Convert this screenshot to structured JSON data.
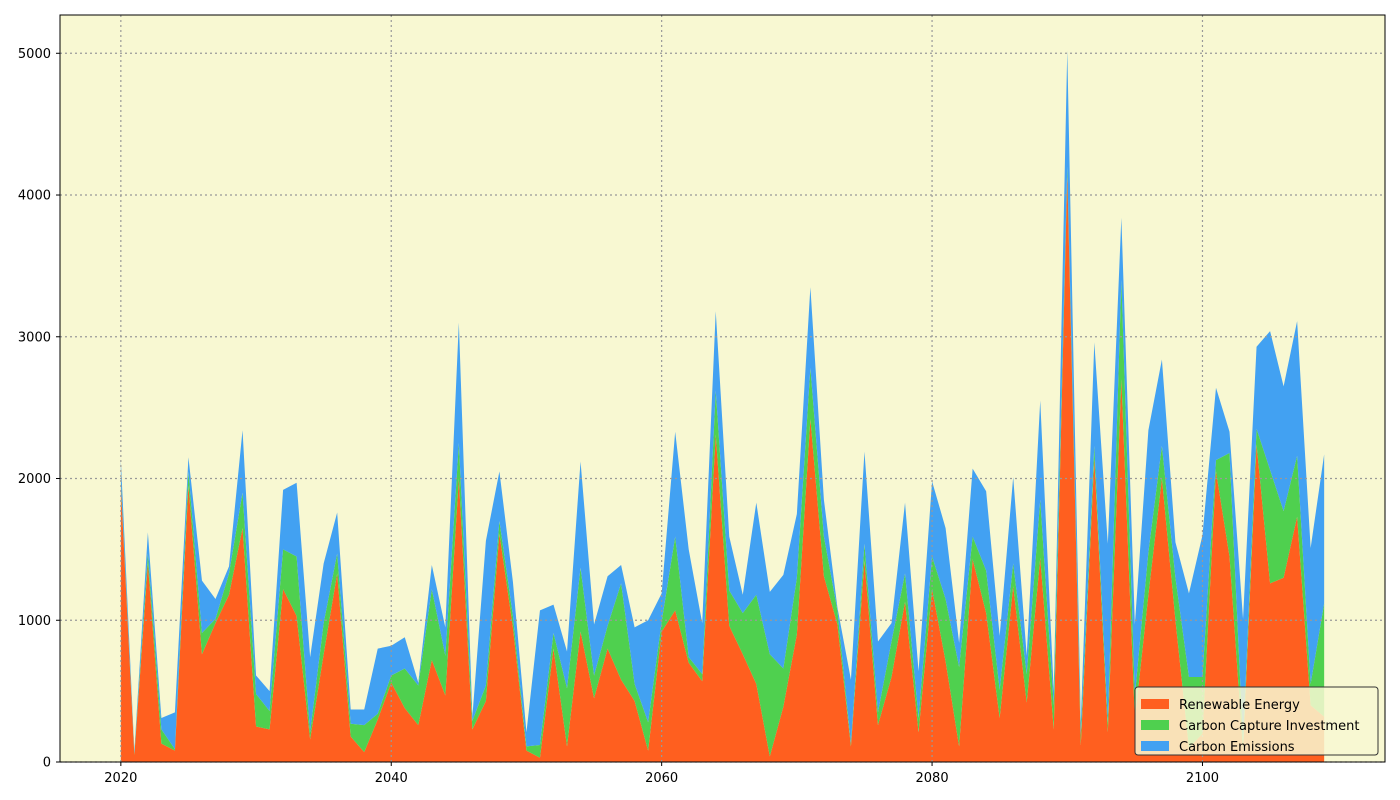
{
  "chart_data": {
    "type": "area",
    "stacked": true,
    "x": [
      2020,
      2021,
      2022,
      2023,
      2024,
      2025,
      2026,
      2027,
      2028,
      2029,
      2030,
      2031,
      2032,
      2033,
      2034,
      2035,
      2036,
      2037,
      2038,
      2039,
      2040,
      2041,
      2042,
      2043,
      2044,
      2045,
      2046,
      2047,
      2048,
      2049,
      2050,
      2051,
      2052,
      2053,
      2054,
      2055,
      2056,
      2057,
      2058,
      2059,
      2060,
      2061,
      2062,
      2063,
      2064,
      2065,
      2066,
      2067,
      2068,
      2069,
      2070,
      2071,
      2072,
      2073,
      2074,
      2075,
      2076,
      2077,
      2078,
      2079,
      2080,
      2081,
      2082,
      2083,
      2084,
      2085,
      2086,
      2087,
      2088,
      2089,
      2090,
      2091,
      2092,
      2093,
      2094,
      2095,
      2096,
      2097,
      2098,
      2099,
      2100,
      2101,
      2102,
      2103,
      2104,
      2105,
      2106,
      2107,
      2108,
      2109
    ],
    "series": [
      {
        "name": "Renewable Energy",
        "color": "#ff5f1f",
        "values": [
          1950,
          50,
          1400,
          130,
          80,
          1950,
          760,
          980,
          1180,
          1650,
          250,
          230,
          1220,
          1030,
          160,
          760,
          1330,
          180,
          70,
          300,
          560,
          380,
          260,
          720,
          470,
          2000,
          230,
          430,
          1610,
          950,
          80,
          30,
          800,
          110,
          920,
          450,
          800,
          580,
          430,
          80,
          920,
          1070,
          700,
          570,
          2310,
          960,
          760,
          550,
          40,
          390,
          900,
          2420,
          1310,
          970,
          110,
          1420,
          260,
          600,
          1130,
          210,
          1220,
          710,
          110,
          1430,
          1050,
          310,
          1240,
          420,
          1440,
          230,
          4150,
          120,
          2140,
          210,
          2700,
          300,
          1180,
          2000,
          1000,
          100,
          200,
          2050,
          1450,
          80,
          2240,
          1260,
          1300,
          1730,
          400,
          320
        ]
      },
      {
        "name": "Carbon Capture Investment",
        "color": "#4fd04f",
        "values": [
          30,
          10,
          70,
          100,
          10,
          100,
          150,
          30,
          150,
          250,
          230,
          130,
          280,
          420,
          50,
          220,
          140,
          90,
          190,
          40,
          50,
          280,
          280,
          500,
          280,
          250,
          60,
          110,
          90,
          80,
          30,
          90,
          110,
          410,
          450,
          160,
          160,
          680,
          120,
          200,
          70,
          520,
          40,
          50,
          310,
          250,
          290,
          630,
          720,
          270,
          400,
          360,
          280,
          100,
          20,
          120,
          90,
          250,
          200,
          100,
          230,
          440,
          560,
          160,
          300,
          200,
          160,
          200,
          410,
          170,
          50,
          70,
          90,
          70,
          700,
          170,
          300,
          230,
          300,
          500,
          400,
          80,
          730,
          60,
          110,
          800,
          470,
          430,
          150,
          800
        ]
      },
      {
        "name": "Carbon Emissions",
        "color": "#42a1f2",
        "values": [
          150,
          20,
          150,
          80,
          260,
          100,
          370,
          140,
          50,
          440,
          130,
          140,
          420,
          520,
          530,
          420,
          290,
          100,
          110,
          460,
          210,
          220,
          20,
          170,
          200,
          850,
          30,
          1020,
          350,
          240,
          100,
          950,
          200,
          260,
          750,
          360,
          350,
          130,
          400,
          720,
          200,
          740,
          760,
          360,
          560,
          380,
          130,
          650,
          440,
          660,
          450,
          570,
          260,
          20,
          450,
          650,
          500,
          130,
          500,
          330,
          530,
          500,
          170,
          480,
          560,
          380,
          610,
          130,
          700,
          100,
          820,
          90,
          730,
          1260,
          440,
          500,
          860,
          610,
          250,
          590,
          1000,
          510,
          150,
          870,
          580,
          980,
          880,
          950,
          960,
          1050
        ]
      }
    ],
    "xticks": [
      2020,
      2040,
      2060,
      2080,
      2100
    ],
    "yticks": [
      0,
      1000,
      2000,
      3000,
      4000,
      5000
    ],
    "xlim": [
      2015.5,
      2113.5
    ],
    "ylim": [
      0,
      5270
    ],
    "grid": true,
    "legend_position": "lower-right",
    "background_color": "#f8f8d2",
    "title": "",
    "xlabel": "",
    "ylabel": ""
  }
}
